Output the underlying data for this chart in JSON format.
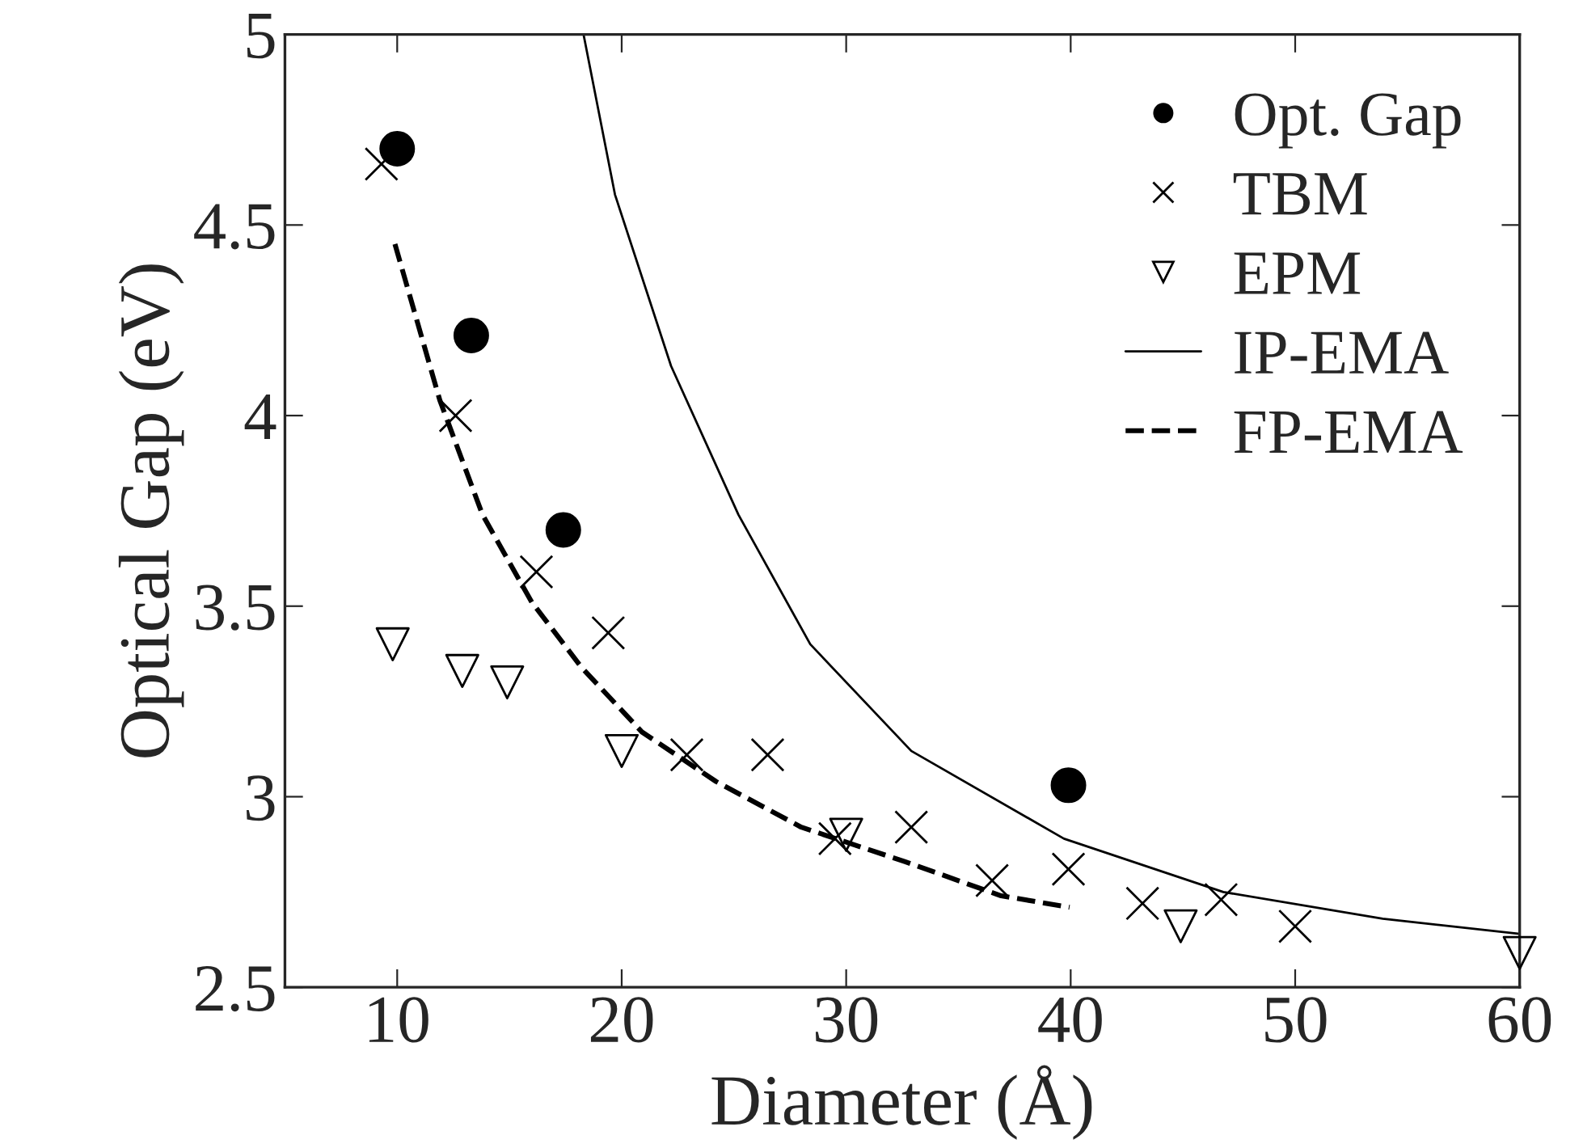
{
  "chart_data": {
    "type": "scatter",
    "xlabel": "Diameter (Å)",
    "ylabel": "Optical Gap (eV)",
    "xlim": [
      5,
      60
    ],
    "ylim": [
      2.5,
      5
    ],
    "xticks": [
      10,
      20,
      30,
      40,
      50,
      60
    ],
    "yticks": [
      2.5,
      3,
      3.5,
      4,
      4.5,
      5
    ],
    "grid": false,
    "legend": "top right",
    "series": [
      {
        "name": "Opt. Gap",
        "marker": "circle",
        "color": "#000000",
        "x": [
          10,
          13.3,
          17.4,
          39.9
        ],
        "values": [
          4.7,
          4.21,
          3.7,
          3.03
        ]
      },
      {
        "name": "TBM",
        "marker": "cross",
        "color": "#000000",
        "x": [
          9.3,
          12.6,
          16.2,
          19.4,
          22.9,
          26.5,
          29.5,
          32.9,
          36.5,
          39.9,
          43.2,
          46.7,
          50.0
        ],
        "values": [
          4.66,
          4.0,
          3.59,
          3.43,
          3.11,
          3.11,
          2.89,
          2.92,
          2.78,
          2.81,
          2.72,
          2.73,
          2.66
        ]
      },
      {
        "name": "EPM",
        "marker": "triangle",
        "color": "#000000",
        "x": [
          9.8,
          12.9,
          14.9,
          20.0,
          30.0,
          44.9,
          60
        ],
        "values": [
          3.4,
          3.33,
          3.3,
          3.12,
          2.9,
          2.66,
          2.59
        ]
      },
      {
        "name": "IP-EMA",
        "type": "line",
        "marker": "none",
        "line_style": "solid",
        "color": "#000000",
        "x": [
          18.3,
          19.7,
          22.2,
          25.2,
          28.4,
          32.9,
          39.7,
          46.8,
          53.9,
          60
        ],
        "values": [
          5,
          4.58,
          4.13,
          3.74,
          3.4,
          3.12,
          2.89,
          2.75,
          2.68,
          2.64
        ]
      },
      {
        "name": "FP-EMA",
        "type": "line",
        "marker": "none",
        "line_style": "dashed",
        "color": "#000000",
        "x": [
          9.9,
          11.9,
          13.8,
          16.0,
          18.2,
          20.9,
          24.2,
          28.0,
          32.6,
          36.9,
          39.95
        ],
        "values": [
          4.45,
          4.04,
          3.74,
          3.51,
          3.34,
          3.17,
          3.04,
          2.92,
          2.83,
          2.74,
          2.71
        ]
      }
    ]
  }
}
